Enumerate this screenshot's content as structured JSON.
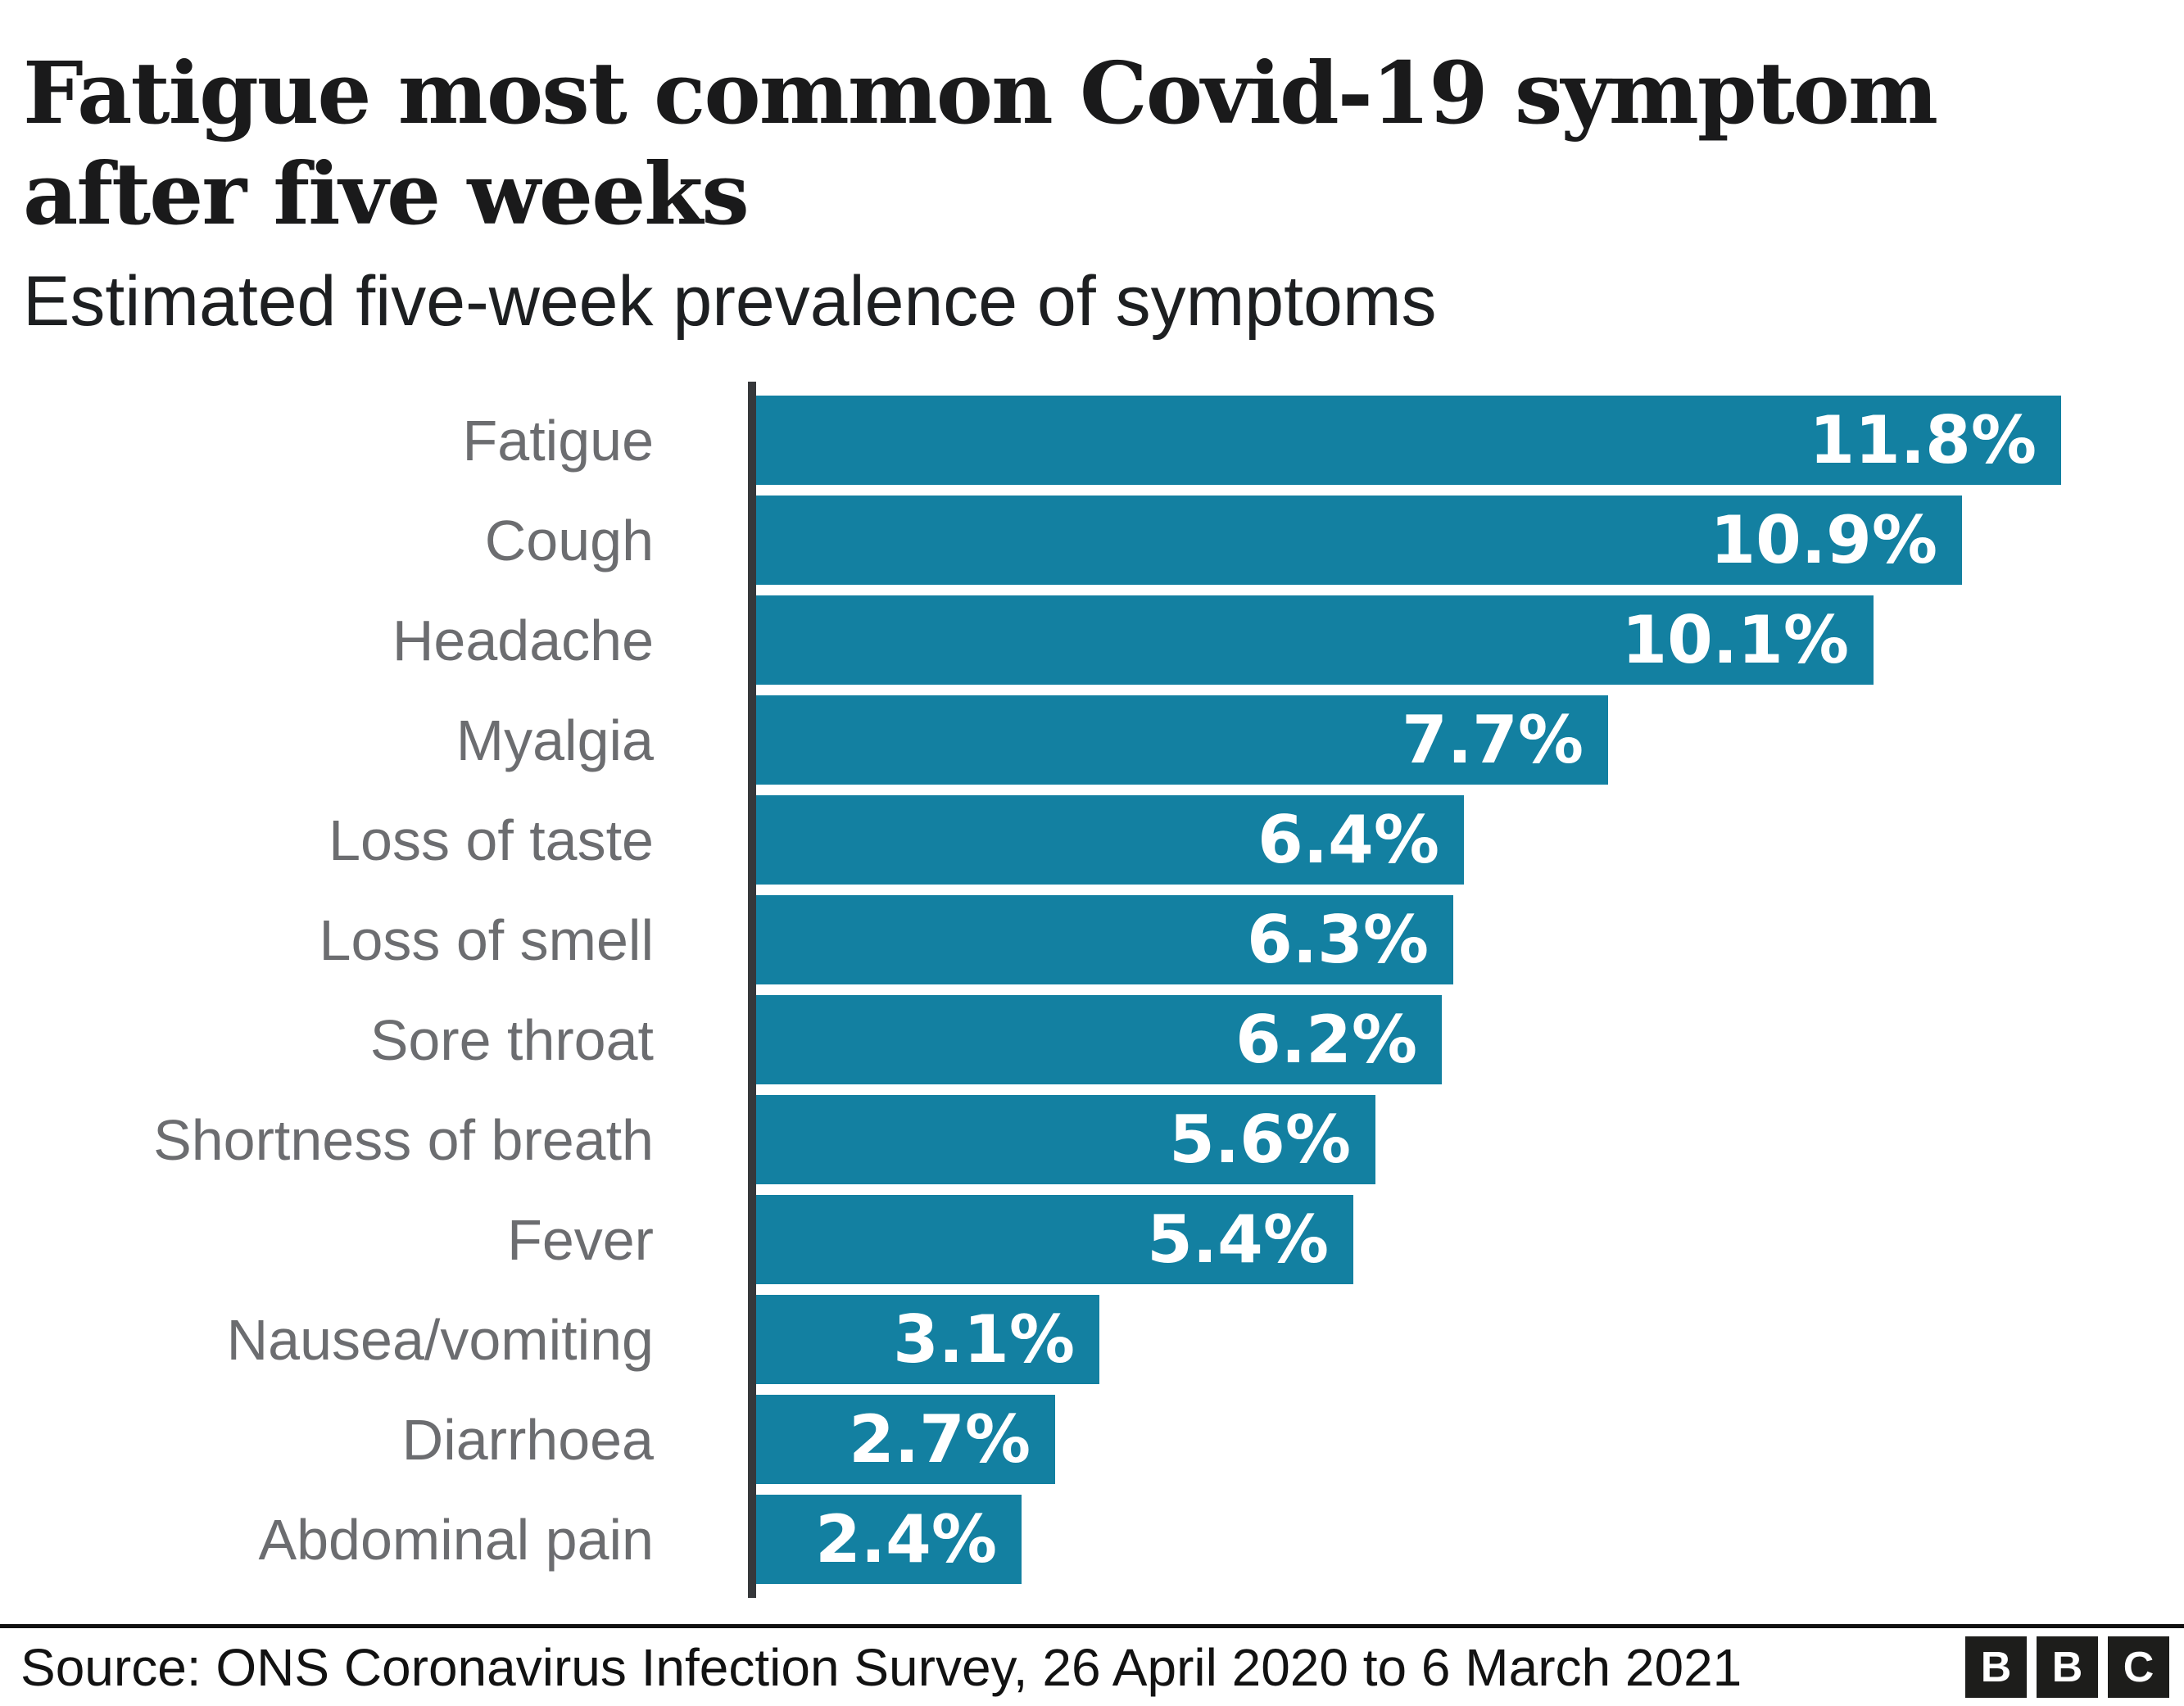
{
  "title": "Fatigue most common Covid-19 symptom after five weeks",
  "subtitle": "Estimated five-week prevalence of symptoms",
  "footer": {
    "source": "Source: ONS Coronavirus Infection Survey, 26 April 2020 to 6 March 2021",
    "logo_letters": [
      "B",
      "B",
      "C"
    ]
  },
  "colors": {
    "background": "#FFFFFF",
    "bar": "#1380A1",
    "axis": "#36383B",
    "category_label": "#6C6D70",
    "value_label": "#FFFFFF",
    "title": "#1A1A1B",
    "subtitle": "#1D1F21",
    "source": "#121212",
    "separator": "#101010",
    "logo_bg": "#1D1D1B"
  },
  "chart_data": {
    "type": "bar",
    "orientation": "horizontal",
    "title": "Fatigue most common Covid-19 symptom after five weeks",
    "subtitle": "Estimated five-week prevalence of symptoms",
    "categories": [
      "Fatigue",
      "Cough",
      "Headache",
      "Myalgia",
      "Loss of taste",
      "Loss of smell",
      "Sore throat",
      "Shortness of breath",
      "Fever",
      "Nausea/vomiting",
      "Diarrhoea",
      "Abdominal pain"
    ],
    "values": [
      11.8,
      10.9,
      10.1,
      7.7,
      6.4,
      6.3,
      6.2,
      5.6,
      5.4,
      3.1,
      2.7,
      2.4
    ],
    "value_labels": [
      "11.8%",
      "10.9%",
      "10.1%",
      "7.7%",
      "6.4%",
      "6.3%",
      "6.2%",
      "5.6%",
      "5.4%",
      "3.1%",
      "2.7%",
      "2.4%"
    ],
    "unit": "%",
    "xlim": [
      0,
      11.8
    ],
    "grid": false,
    "legend": false,
    "value_label_position": "inside-end",
    "bar_color": "#1380A1"
  }
}
